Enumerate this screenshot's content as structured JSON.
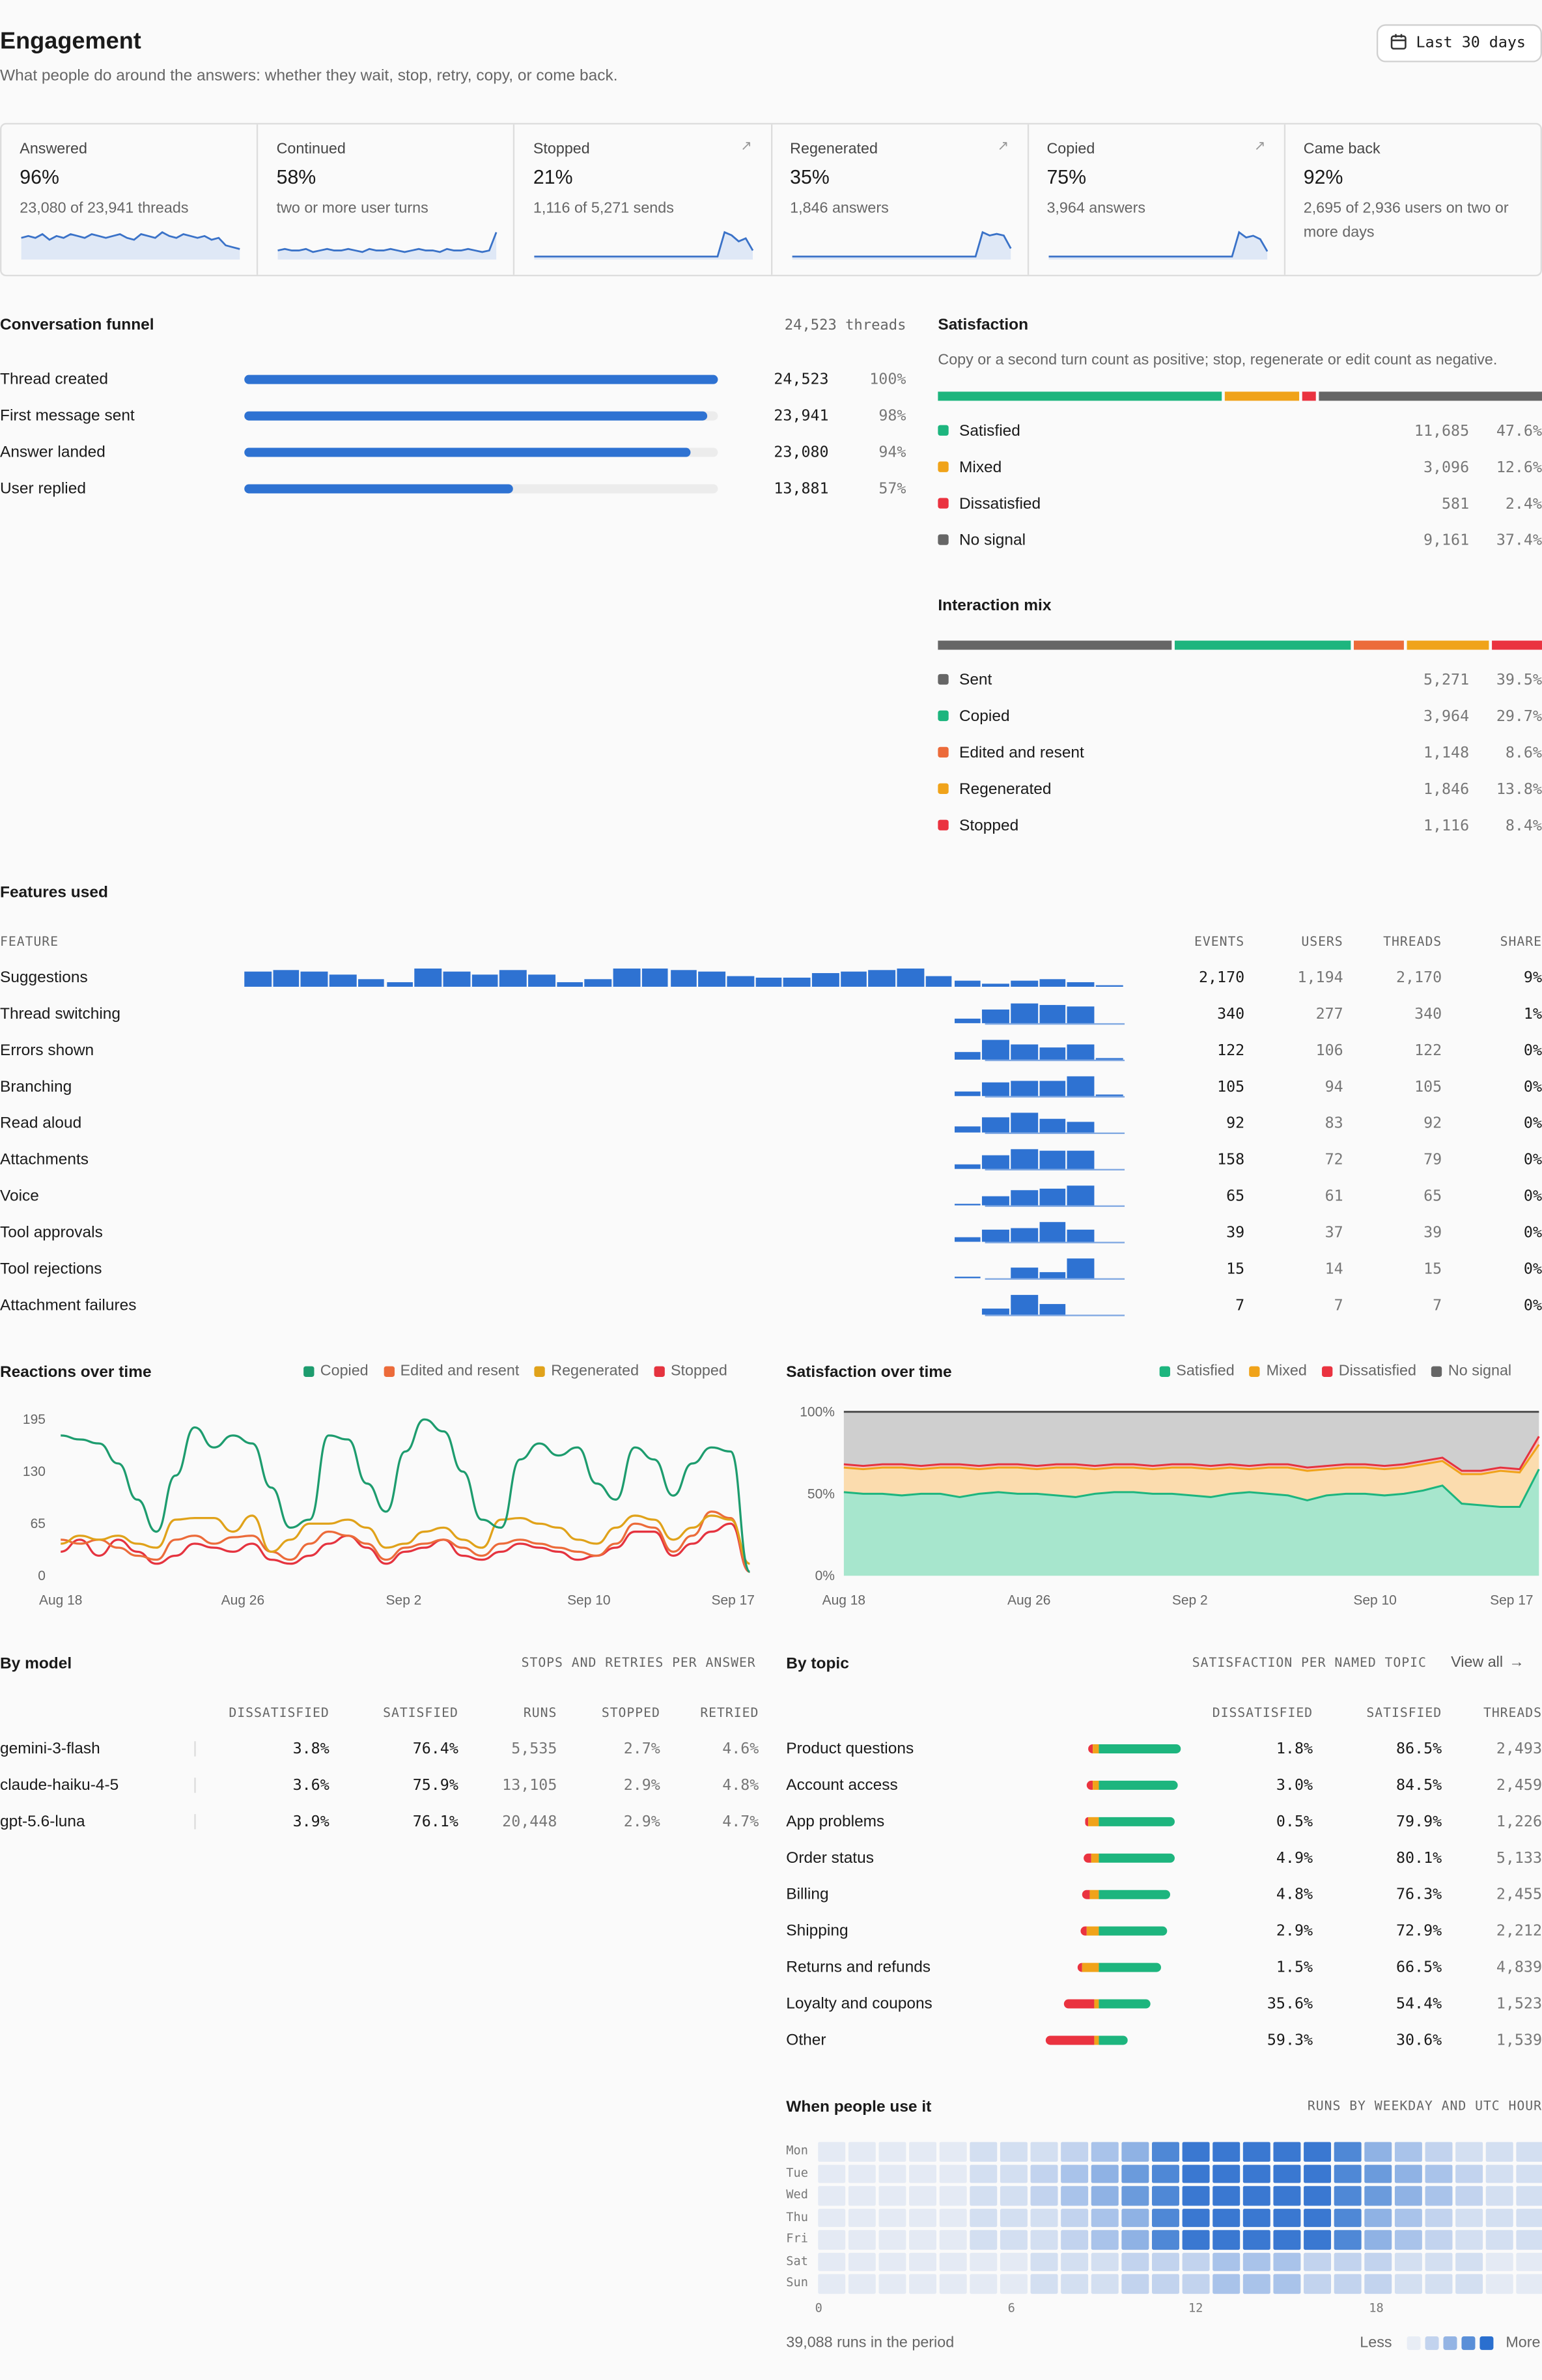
{
  "header": {
    "title": "Engagement",
    "subtitle": "What people do around the answers: whether they wait, stop, retry, copy, or come back.",
    "range_label": "Last 30 days"
  },
  "kpis": [
    {
      "label": "Answered",
      "value": "96%",
      "detail": "23,080 of 23,941 threads",
      "arrow": false,
      "spark": [
        10,
        11,
        10,
        12,
        9,
        11,
        10,
        12,
        11,
        10,
        12,
        11,
        10,
        11,
        12,
        10,
        9,
        12,
        11,
        10,
        13,
        11,
        10,
        12,
        11,
        10,
        11,
        9,
        10,
        6,
        5,
        4
      ]
    },
    {
      "label": "Continued",
      "value": "58%",
      "detail": "two or more user turns",
      "arrow": false,
      "spark": [
        4,
        5,
        4,
        4,
        5,
        3,
        4,
        5,
        4,
        4,
        5,
        4,
        3,
        5,
        4,
        4,
        5,
        4,
        3,
        4,
        5,
        4,
        4,
        3,
        5,
        4,
        4,
        5,
        4,
        3,
        4,
        16
      ]
    },
    {
      "label": "Stopped",
      "value": "21%",
      "detail": "1,116 of 5,271 sends",
      "arrow": true,
      "spark": [
        0,
        0,
        0,
        0,
        0,
        0,
        0,
        0,
        0,
        0,
        0,
        0,
        0,
        0,
        0,
        0,
        0,
        0,
        0,
        0,
        0,
        0,
        0,
        0,
        0,
        0,
        0,
        16,
        14,
        10,
        12,
        4
      ]
    },
    {
      "label": "Regenerated",
      "value": "35%",
      "detail": "1,846 answers",
      "arrow": true,
      "spark": [
        0,
        0,
        0,
        0,
        0,
        0,
        0,
        0,
        0,
        0,
        0,
        0,
        0,
        0,
        0,
        0,
        0,
        0,
        0,
        0,
        0,
        0,
        0,
        0,
        0,
        0,
        0,
        15,
        13,
        14,
        13,
        5
      ]
    },
    {
      "label": "Copied",
      "value": "75%",
      "detail": "3,964 answers",
      "arrow": true,
      "spark": [
        0,
        0,
        0,
        0,
        0,
        0,
        0,
        0,
        0,
        0,
        0,
        0,
        0,
        0,
        0,
        0,
        0,
        0,
        0,
        0,
        0,
        0,
        0,
        0,
        0,
        0,
        0,
        14,
        11,
        12,
        10,
        3
      ]
    },
    {
      "label": "Came back",
      "value": "92%",
      "detail": "2,695 of 2,936 users on two or more days",
      "arrow": false,
      "spark": []
    }
  ],
  "funnel": {
    "title": "Conversation funnel",
    "total": "24,523  threads",
    "rows": [
      {
        "label": "Thread created",
        "count": "24,523",
        "pct": "100%",
        "frac": 1.0
      },
      {
        "label": "First message sent",
        "count": "23,941",
        "pct": "98%",
        "frac": 0.976
      },
      {
        "label": "Answer landed",
        "count": "23,080",
        "pct": "94%",
        "frac": 0.941
      },
      {
        "label": "User replied",
        "count": "13,881",
        "pct": "57%",
        "frac": 0.566
      }
    ]
  },
  "satisfaction": {
    "title": "Satisfaction",
    "subtitle": "Copy or a second turn count as positive; stop, regenerate or edit count as negative.",
    "rows": [
      {
        "label": "Satisfied",
        "count": "11,685",
        "pct": "47.6%",
        "frac": 0.476,
        "color": "#1db57e"
      },
      {
        "label": "Mixed",
        "count": "3,096",
        "pct": "12.6%",
        "frac": 0.126,
        "color": "#f0a31a"
      },
      {
        "label": "Dissatisfied",
        "count": "581",
        "pct": "2.4%",
        "frac": 0.024,
        "color": "#ea3340"
      },
      {
        "label": "No signal",
        "count": "9,161",
        "pct": "37.4%",
        "frac": 0.374,
        "color": "#666666"
      }
    ]
  },
  "interaction": {
    "title": "Interaction mix",
    "rows": [
      {
        "label": "Sent",
        "count": "5,271",
        "pct": "39.5%",
        "frac": 0.395,
        "color": "#666666"
      },
      {
        "label": "Copied",
        "count": "3,964",
        "pct": "29.7%",
        "frac": 0.297,
        "color": "#1db57e"
      },
      {
        "label": "Edited and resent",
        "count": "1,148",
        "pct": "8.6%",
        "frac": 0.086,
        "color": "#ec6b3a"
      },
      {
        "label": "Regenerated",
        "count": "1,846",
        "pct": "13.8%",
        "frac": 0.138,
        "color": "#f0a31a"
      },
      {
        "label": "Stopped",
        "count": "1,116",
        "pct": "8.4%",
        "frac": 0.084,
        "color": "#ea3340"
      }
    ]
  },
  "features": {
    "title": "Features used",
    "columns": [
      "FEATURE",
      "EVENTS",
      "USERS",
      "THREADS",
      "SHARE"
    ],
    "rows": [
      {
        "label": "Suggestions",
        "events": "2,170",
        "users": "1,194",
        "threads": "2,170",
        "share": "9%",
        "bars": [
          0.75,
          0.8,
          0.75,
          0.6,
          0.35,
          0.2,
          0.85,
          0.75,
          0.6,
          0.8,
          0.6,
          0.2,
          0.35,
          0.85,
          0.85,
          0.8,
          0.75,
          0.5,
          0.4,
          0.45,
          0.65,
          0.75,
          0.8,
          0.85,
          0.5,
          0.3,
          0.15,
          0.3,
          0.35,
          0.2,
          0.05
        ]
      },
      {
        "label": "Thread switching",
        "events": "340",
        "users": "277",
        "threads": "340",
        "share": "1%",
        "bars": [
          0,
          0,
          0,
          0,
          0,
          0,
          0,
          0,
          0,
          0,
          0,
          0,
          0,
          0,
          0,
          0,
          0,
          0,
          0,
          0,
          0,
          0,
          0,
          0,
          0,
          0.25,
          0.65,
          0.9,
          0.85,
          0.8,
          0
        ]
      },
      {
        "label": "Errors shown",
        "events": "122",
        "users": "106",
        "threads": "122",
        "share": "0%",
        "bars": [
          0,
          0,
          0,
          0,
          0,
          0,
          0,
          0,
          0,
          0,
          0,
          0,
          0,
          0,
          0,
          0,
          0,
          0,
          0,
          0,
          0,
          0,
          0,
          0,
          0,
          0.35,
          0.9,
          0.75,
          0.55,
          0.75,
          0.05
        ]
      },
      {
        "label": "Branching",
        "events": "105",
        "users": "94",
        "threads": "105",
        "share": "0%",
        "bars": [
          0,
          0,
          0,
          0,
          0,
          0,
          0,
          0,
          0,
          0,
          0,
          0,
          0,
          0,
          0,
          0,
          0,
          0,
          0,
          0,
          0,
          0,
          0,
          0,
          0,
          0.2,
          0.65,
          0.75,
          0.7,
          0.95,
          0.05
        ]
      },
      {
        "label": "Read aloud",
        "events": "92",
        "users": "83",
        "threads": "92",
        "share": "0%",
        "bars": [
          0,
          0,
          0,
          0,
          0,
          0,
          0,
          0,
          0,
          0,
          0,
          0,
          0,
          0,
          0,
          0,
          0,
          0,
          0,
          0,
          0,
          0,
          0,
          0,
          0,
          0.3,
          0.75,
          0.95,
          0.65,
          0.5,
          0
        ]
      },
      {
        "label": "Attachments",
        "events": "158",
        "users": "72",
        "threads": "79",
        "share": "0%",
        "bars": [
          0,
          0,
          0,
          0,
          0,
          0,
          0,
          0,
          0,
          0,
          0,
          0,
          0,
          0,
          0,
          0,
          0,
          0,
          0,
          0,
          0,
          0,
          0,
          0,
          0,
          0.25,
          0.65,
          0.95,
          0.85,
          0.85,
          0
        ]
      },
      {
        "label": "Voice",
        "events": "65",
        "users": "61",
        "threads": "65",
        "share": "0%",
        "bars": [
          0,
          0,
          0,
          0,
          0,
          0,
          0,
          0,
          0,
          0,
          0,
          0,
          0,
          0,
          0,
          0,
          0,
          0,
          0,
          0,
          0,
          0,
          0,
          0,
          0,
          0.1,
          0.45,
          0.7,
          0.8,
          0.95,
          0
        ]
      },
      {
        "label": "Tool approvals",
        "events": "39",
        "users": "37",
        "threads": "39",
        "share": "0%",
        "bars": [
          0,
          0,
          0,
          0,
          0,
          0,
          0,
          0,
          0,
          0,
          0,
          0,
          0,
          0,
          0,
          0,
          0,
          0,
          0,
          0,
          0,
          0,
          0,
          0,
          0,
          0.2,
          0.55,
          0.65,
          0.95,
          0.55,
          0
        ]
      },
      {
        "label": "Tool rejections",
        "events": "15",
        "users": "14",
        "threads": "15",
        "share": "0%",
        "bars": [
          0,
          0,
          0,
          0,
          0,
          0,
          0,
          0,
          0,
          0,
          0,
          0,
          0,
          0,
          0,
          0,
          0,
          0,
          0,
          0,
          0,
          0,
          0,
          0,
          0,
          0.1,
          0,
          0.5,
          0.3,
          0.95,
          0
        ]
      },
      {
        "label": "Attachment failures",
        "events": "7",
        "users": "7",
        "threads": "7",
        "share": "0%",
        "bars": [
          0,
          0,
          0,
          0,
          0,
          0,
          0,
          0,
          0,
          0,
          0,
          0,
          0,
          0,
          0,
          0,
          0,
          0,
          0,
          0,
          0,
          0,
          0,
          0,
          0,
          0,
          0.3,
          0.95,
          0.5,
          0,
          0
        ]
      }
    ]
  },
  "reactions": {
    "title": "Reactions over time",
    "legend": [
      {
        "label": "Copied",
        "color": "#1d9c6e"
      },
      {
        "label": "Edited and resent",
        "color": "#ec6b3a"
      },
      {
        "label": "Regenerated",
        "color": "#e0a21a"
      },
      {
        "label": "Stopped",
        "color": "#e5333f"
      }
    ],
    "y_ticks": [
      "195",
      "130",
      "65",
      "0"
    ],
    "x_ticks": [
      "Aug 18",
      "Aug 26",
      "Sep 2",
      "Sep 10",
      "Sep 17"
    ]
  },
  "sat_time": {
    "title": "Satisfaction over time",
    "legend": [
      {
        "label": "Satisfied",
        "color": "#1db57e"
      },
      {
        "label": "Mixed",
        "color": "#f0a31a"
      },
      {
        "label": "Dissatisfied",
        "color": "#ea3340"
      },
      {
        "label": "No signal",
        "color": "#666666"
      }
    ],
    "y_ticks": [
      "100%",
      "50%",
      "0%"
    ],
    "x_ticks": [
      "Aug 18",
      "Aug 26",
      "Sep 2",
      "Sep 10",
      "Sep 17"
    ]
  },
  "by_model": {
    "title": "By model",
    "caption": "STOPS AND RETRIES PER ANSWER",
    "columns": [
      "DISSATISFIED",
      "SATISFIED",
      "RUNS",
      "STOPPED",
      "RETRIED"
    ],
    "rows": [
      {
        "name": "gemini-3-flash",
        "dissatisfied": "3.8%",
        "satisfied": "76.4%",
        "runs": "5,535",
        "stopped": "2.7%",
        "retried": "4.6%"
      },
      {
        "name": "claude-haiku-4-5",
        "dissatisfied": "3.6%",
        "satisfied": "75.9%",
        "runs": "13,105",
        "stopped": "2.9%",
        "retried": "4.8%"
      },
      {
        "name": "gpt-5.6-luna",
        "dissatisfied": "3.9%",
        "satisfied": "76.1%",
        "runs": "20,448",
        "stopped": "2.9%",
        "retried": "4.7%"
      }
    ]
  },
  "by_topic": {
    "title": "By topic",
    "caption": "SATISFACTION PER NAMED TOPIC",
    "view_all": "View all",
    "columns": [
      "DISSATISFIED",
      "SATISFIED",
      "THREADS"
    ],
    "rows": [
      {
        "name": "Product questions",
        "dissatisfied": "1.8%",
        "satisfied": "86.5%",
        "threads": "2,493",
        "d": 0.018,
        "m": 0.117,
        "s": 0.865
      },
      {
        "name": "Account access",
        "dissatisfied": "3.0%",
        "satisfied": "84.5%",
        "threads": "2,459",
        "d": 0.03,
        "m": 0.125,
        "s": 0.845
      },
      {
        "name": "App problems",
        "dissatisfied": "0.5%",
        "satisfied": "79.9%",
        "threads": "1,226",
        "d": 0.005,
        "m": 0.196,
        "s": 0.799
      },
      {
        "name": "Order status",
        "dissatisfied": "4.9%",
        "satisfied": "80.1%",
        "threads": "5,133",
        "d": 0.049,
        "m": 0.15,
        "s": 0.801
      },
      {
        "name": "Billing",
        "dissatisfied": "4.8%",
        "satisfied": "76.3%",
        "threads": "2,455",
        "d": 0.048,
        "m": 0.189,
        "s": 0.763
      },
      {
        "name": "Shipping",
        "dissatisfied": "2.9%",
        "satisfied": "72.9%",
        "threads": "2,212",
        "d": 0.029,
        "m": 0.242,
        "s": 0.729
      },
      {
        "name": "Returns and refunds",
        "dissatisfied": "1.5%",
        "satisfied": "66.5%",
        "threads": "4,839",
        "d": 0.015,
        "m": 0.32,
        "s": 0.665
      },
      {
        "name": "Loyalty and coupons",
        "dissatisfied": "35.6%",
        "satisfied": "54.4%",
        "threads": "1,523",
        "d": 0.356,
        "m": 0.1,
        "s": 0.544
      },
      {
        "name": "Other",
        "dissatisfied": "59.3%",
        "satisfied": "30.6%",
        "threads": "1,539",
        "d": 0.593,
        "m": 0.101,
        "s": 0.306
      }
    ]
  },
  "heatmap": {
    "title": "When people use it",
    "caption": "RUNS BY WEEKDAY AND UTC HOUR",
    "days": [
      "Mon",
      "Tue",
      "Wed",
      "Thu",
      "Fri",
      "Sat",
      "Sun"
    ],
    "hour_labels": [
      "0",
      "6",
      "12",
      "18"
    ],
    "total": "39,088 runs in the period",
    "less": "Less",
    "more": "More"
  }
}
